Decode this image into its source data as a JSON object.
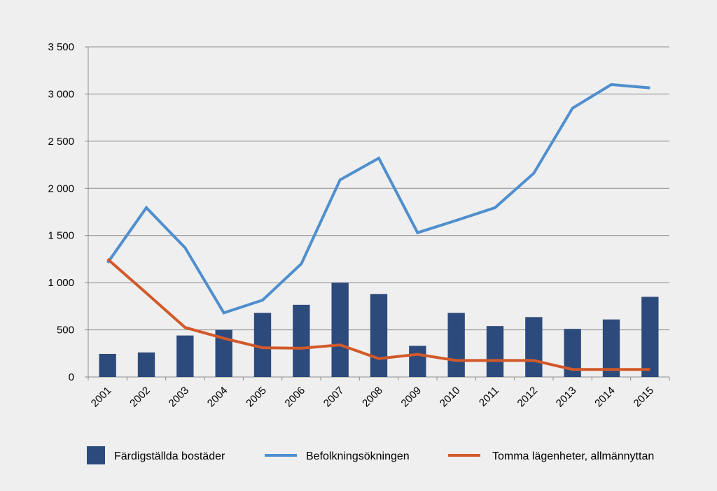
{
  "chart_data": {
    "type": "bar",
    "categories": [
      "2001",
      "2002",
      "2003",
      "2004",
      "2005",
      "2006",
      "2007",
      "2008",
      "2009",
      "2010",
      "2011",
      "2012",
      "2013",
      "2014",
      "2015"
    ],
    "ylim": [
      0,
      3500
    ],
    "yticks": [
      0,
      500,
      1000,
      1500,
      2000,
      2500,
      3000,
      3500
    ],
    "ytick_labels": [
      "0",
      "500",
      "1 000",
      "1 500",
      "2 000",
      "2 500",
      "3 000",
      "3 500"
    ],
    "grid": true,
    "legend_position": "bottom",
    "background": "#efefef",
    "series": [
      {
        "name": "Färdigställda bostäder",
        "type": "bar",
        "color": "#2c4a7c",
        "values": [
          245,
          260,
          440,
          500,
          680,
          765,
          1000,
          880,
          330,
          680,
          540,
          635,
          510,
          610,
          850
        ]
      },
      {
        "name": "Befolkningsökningen",
        "type": "line",
        "color": "#4f8fce",
        "values": [
          1210,
          1795,
          1370,
          680,
          815,
          1200,
          2090,
          2320,
          1530,
          1660,
          1795,
          2160,
          2850,
          3100,
          3065
        ]
      },
      {
        "name": "Tomma lägenheter, allmännyttan",
        "type": "line",
        "color": "#d2592a",
        "values": [
          1250,
          890,
          525,
          410,
          310,
          305,
          340,
          195,
          240,
          175,
          175,
          175,
          80,
          80,
          80
        ]
      }
    ]
  }
}
